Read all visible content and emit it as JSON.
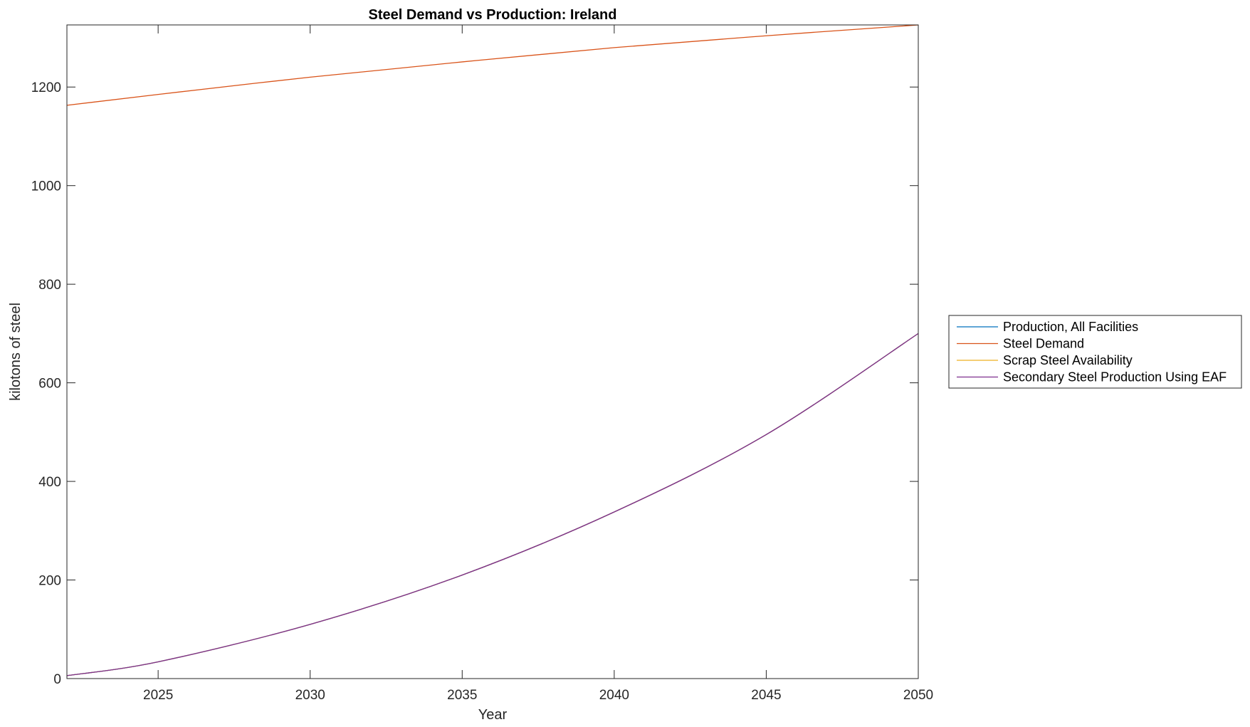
{
  "chart_data": {
    "type": "line",
    "title": "Steel Demand vs Production: Ireland",
    "xlabel": "Year",
    "ylabel": "kilotons of steel",
    "xlim": [
      2022,
      2050
    ],
    "ylim": [
      0,
      1326
    ],
    "xticks": [
      2025,
      2030,
      2035,
      2040,
      2045,
      2050
    ],
    "yticks": [
      0,
      200,
      400,
      600,
      800,
      1000,
      1200
    ],
    "grid": false,
    "legend_placement": "right-outside",
    "x": [
      2022,
      2025,
      2030,
      2035,
      2040,
      2045,
      2050
    ],
    "series": [
      {
        "name": "Production, All Facilities",
        "color": "#0072BD",
        "values": [
          6,
          34,
          110,
          210,
          338,
          495,
          700
        ]
      },
      {
        "name": "Steel Demand",
        "color": "#D95319",
        "values": [
          1163,
          1185,
          1220,
          1251,
          1280,
          1304,
          1326
        ]
      },
      {
        "name": "Scrap Steel Availability",
        "color": "#EDB120",
        "values": [
          6,
          34,
          110,
          210,
          338,
          495,
          700
        ]
      },
      {
        "name": "Secondary Steel Production Using EAF",
        "color": "#7E2F8E",
        "values": [
          6,
          34,
          110,
          210,
          338,
          495,
          700
        ]
      }
    ]
  }
}
